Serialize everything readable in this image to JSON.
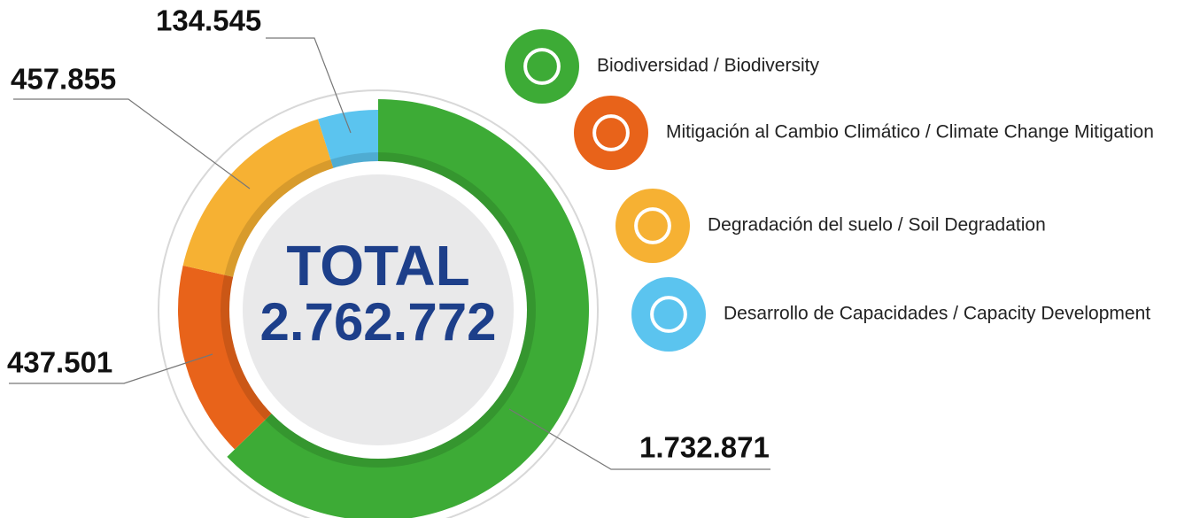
{
  "chart_data": {
    "type": "donut",
    "categories": [
      "Biodiversidad / Biodiversity",
      "Mitigación al Cambio Climático / Climate Change Mitigation",
      "Degradación del suelo / Soil Degradation",
      "Desarrollo de Capacidades / Capacity Development"
    ],
    "values": [
      1732871,
      437501,
      457855,
      134545
    ],
    "value_labels": [
      "1.732.871",
      "437.501",
      "457.855",
      "134.545"
    ],
    "colors": [
      "#3dab36",
      "#e8631a",
      "#f6b133",
      "#5bc4ef"
    ],
    "center_title": "TOTAL",
    "total": 2762772,
    "total_label": "2.762.772"
  }
}
